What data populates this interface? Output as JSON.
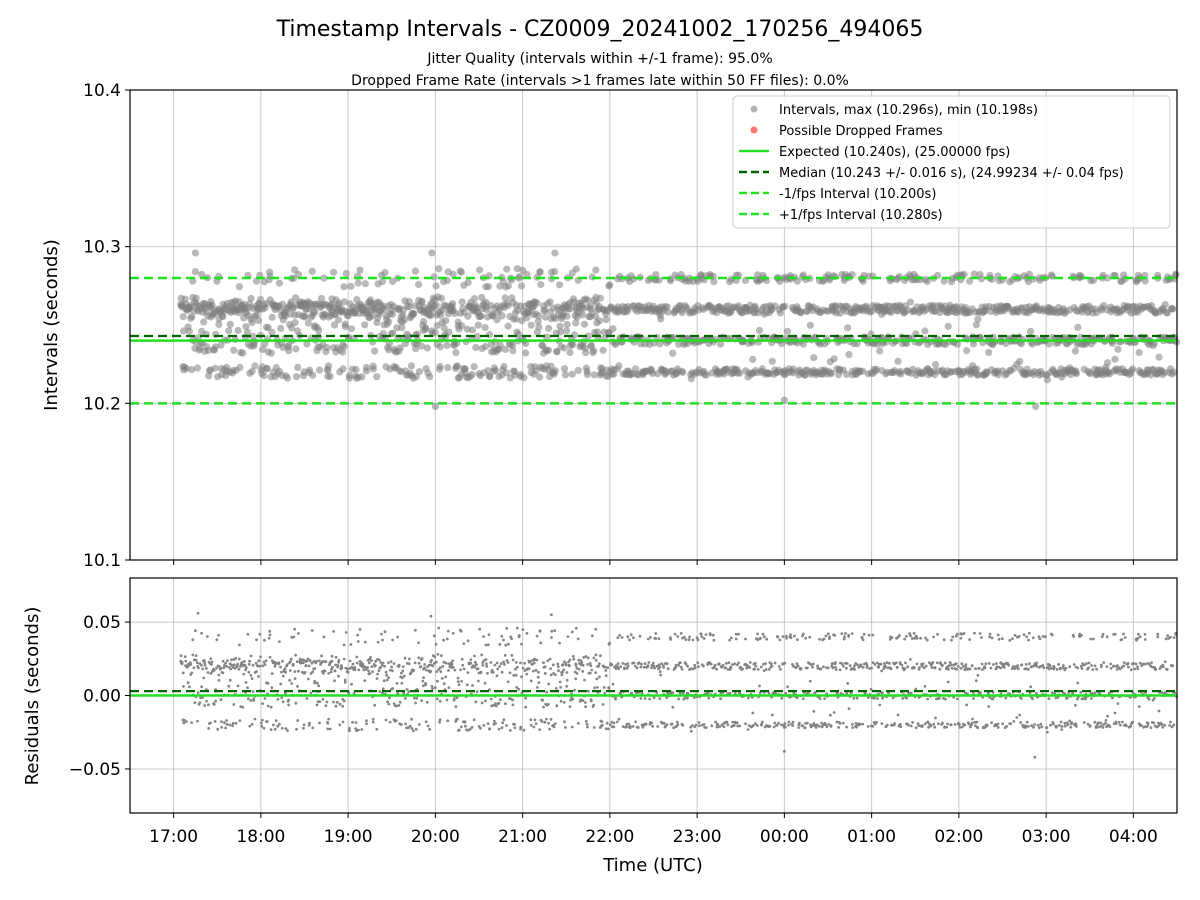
{
  "title": "Timestamp Intervals - CZ0009_20241002_170256_494065",
  "subtitle_lines": [
    "Jitter Quality (intervals within +/-1 frame): 95.0%",
    "Dropped Frame Rate (intervals >1 frames late within 50 FF files): 0.0%"
  ],
  "colors": {
    "intervals": "#808080",
    "dropped": "#ff0000",
    "expected": "#22e022",
    "median": "#006400",
    "bounds": "#22e022",
    "grid": "#b0b0b0"
  },
  "chart_data": [
    {
      "type": "scatter",
      "ylabel": "Intervals (seconds)",
      "ylim": [
        10.1,
        10.4
      ],
      "yticks": [
        "10.1",
        "10.2",
        "10.3",
        "10.4"
      ],
      "yticks_values": [
        10.1,
        10.2,
        10.3,
        10.4
      ],
      "xlim": [
        "16:30",
        "04:30"
      ],
      "grid": true,
      "legend_position": "top-right",
      "legend": [
        "Intervals, max (10.296s), min (10.198s)",
        "Possible Dropped Frames",
        "Expected (10.240s), (25.00000 fps)",
        "Median (10.243 +/- 0.016 s), (24.99234 +/- 0.04 fps)",
        "-1/fps Interval (10.200s)",
        "+1/fps Interval (10.280s)"
      ],
      "reference_lines": {
        "expected": 10.24,
        "median": 10.243,
        "minus_one_frame": 10.2,
        "plus_one_frame": 10.28
      },
      "series": [
        {
          "values_summary": {
            "max": 10.296,
            "min": 10.198,
            "clusters": [
              10.22,
              10.24,
              10.26,
              10.28
            ]
          }
        }
      ]
    },
    {
      "type": "scatter",
      "xlabel": "Time (UTC)",
      "ylabel": "Residuals (seconds)",
      "ylim": [
        -0.08,
        0.08
      ],
      "yticks": [
        "−0.05",
        "0.00",
        "0.05"
      ],
      "yticks_values": [
        -0.05,
        0.0,
        0.05
      ],
      "xticks": [
        "17:00",
        "18:00",
        "19:00",
        "20:00",
        "21:00",
        "22:00",
        "23:00",
        "00:00",
        "01:00",
        "02:00",
        "03:00",
        "04:00"
      ],
      "grid": true,
      "reference_lines": {
        "expected": 0.0,
        "median": 0.003
      },
      "series": [
        {
          "values_summary": {
            "max": 0.056,
            "min": -0.042,
            "clusters": [
              -0.02,
              0.0,
              0.02,
              0.04
            ]
          }
        }
      ]
    }
  ]
}
